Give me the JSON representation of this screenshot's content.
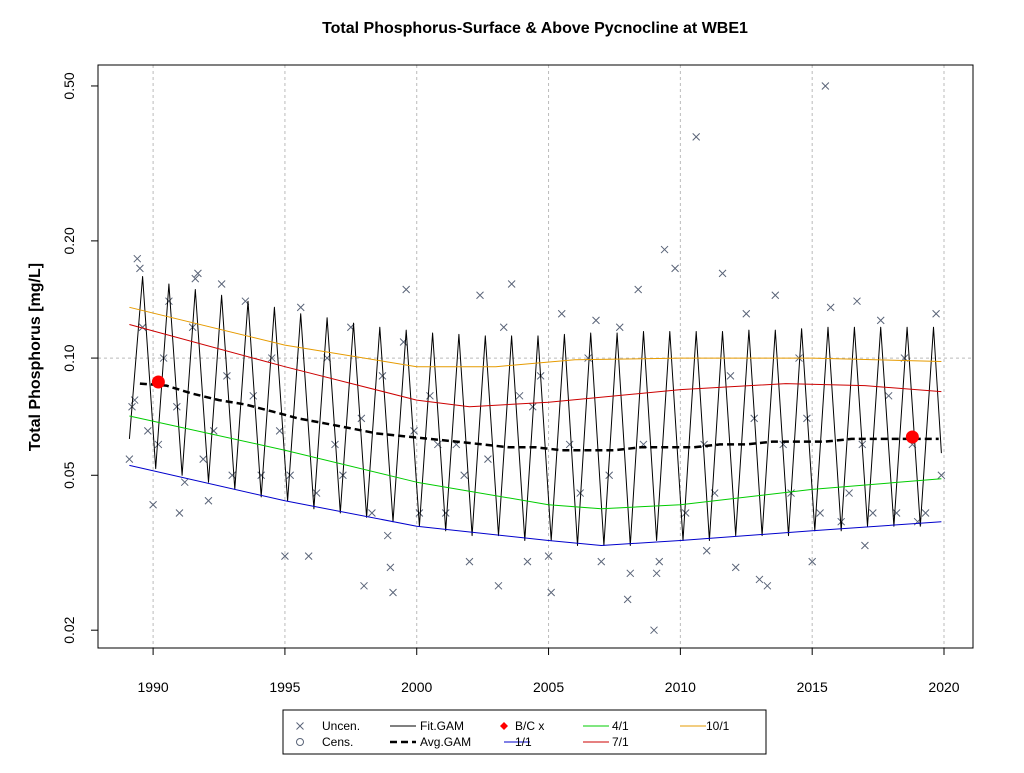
{
  "chart_data": {
    "type": "line",
    "title": "Total Phosphorus-Surface & Above Pycnocline at WBE1",
    "y_label": "Total Phosphorus [mg/L]",
    "log_y": true,
    "xlim": [
      1987.91,
      2021.1
    ],
    "ylim": [
      0.018,
      0.566
    ],
    "xticks": [
      1990,
      1995,
      2000,
      2005,
      2010,
      2015,
      2020
    ],
    "yticks": [
      {
        "value": 0.5,
        "label": "0.50"
      },
      {
        "value": 0.2,
        "label": "0.20"
      },
      {
        "value": 0.1,
        "label": "0.10"
      },
      0.05,
      0.02
    ],
    "xgrid": true,
    "ygrid_at": 0.1,
    "legend_position": "bottom",
    "series": [
      {
        "name": "Uncen.",
        "type": "scatter",
        "marker": "x",
        "color": "#5a6478",
        "x": [
          1989.1,
          1989.2,
          1989.3,
          1989.4,
          1989.5,
          1989.6,
          1989.8,
          1990.0,
          1990.2,
          1990.4,
          1990.6,
          1990.9,
          1991.0,
          1991.2,
          1991.5,
          1991.6,
          1991.7,
          1991.9,
          1992.1,
          1992.3,
          1992.6,
          1992.8,
          1993.0,
          1993.5,
          1993.8,
          1994.1,
          1994.5,
          1994.8,
          1995.0,
          1995.2,
          1995.6,
          1995.9,
          1996.2,
          1996.6,
          1996.9,
          1997.2,
          1997.5,
          1997.9,
          1998.0,
          1998.3,
          1998.7,
          1998.9,
          1999.0,
          1999.1,
          1999.5,
          1999.6,
          1999.9,
          2000.1,
          2000.5,
          2000.8,
          2001.1,
          2001.5,
          2001.8,
          2002.0,
          2002.4,
          2002.7,
          2003.1,
          2003.3,
          2003.6,
          2003.9,
          2004.2,
          2004.4,
          2004.7,
          2005.0,
          2005.1,
          2005.5,
          2005.8,
          2006.2,
          2006.5,
          2006.8,
          2007.0,
          2007.3,
          2007.7,
          2008.0,
          2008.1,
          2008.4,
          2008.6,
          2009.0,
          2009.1,
          2009.2,
          2009.4,
          2009.8,
          2010.2,
          2010.6,
          2010.9,
          2011.0,
          2011.3,
          2011.6,
          2011.9,
          2012.1,
          2012.5,
          2012.8,
          2013.0,
          2013.3,
          2013.6,
          2013.9,
          2014.2,
          2014.5,
          2014.8,
          2015.0,
          2015.3,
          2015.5,
          2015.7,
          2016.1,
          2016.4,
          2016.7,
          2016.9,
          2017.0,
          2017.3,
          2017.6,
          2017.9,
          2018.2,
          2018.5,
          2018.8,
          2019.0,
          2019.3,
          2019.7,
          2019.9
        ],
        "values": [
          0.055,
          0.075,
          0.078,
          0.18,
          0.17,
          0.12,
          0.065,
          0.042,
          0.06,
          0.1,
          0.14,
          0.075,
          0.04,
          0.048,
          0.12,
          0.16,
          0.165,
          0.055,
          0.043,
          0.065,
          0.155,
          0.09,
          0.05,
          0.14,
          0.08,
          0.05,
          0.1,
          0.065,
          0.031,
          0.05,
          0.135,
          0.031,
          0.045,
          0.1,
          0.06,
          0.05,
          0.12,
          0.07,
          0.026,
          0.04,
          0.09,
          0.035,
          0.029,
          0.025,
          0.11,
          0.15,
          0.065,
          0.04,
          0.08,
          0.06,
          0.04,
          0.06,
          0.05,
          0.03,
          0.145,
          0.055,
          0.026,
          0.12,
          0.155,
          0.08,
          0.03,
          0.075,
          0.09,
          0.031,
          0.025,
          0.13,
          0.06,
          0.045,
          0.1,
          0.125,
          0.03,
          0.05,
          0.12,
          0.024,
          0.028,
          0.15,
          0.06,
          0.02,
          0.028,
          0.03,
          0.19,
          0.17,
          0.04,
          0.37,
          0.06,
          0.032,
          0.045,
          0.165,
          0.09,
          0.029,
          0.13,
          0.07,
          0.027,
          0.026,
          0.145,
          0.06,
          0.045,
          0.1,
          0.07,
          0.03,
          0.04,
          0.5,
          0.135,
          0.038,
          0.045,
          0.14,
          0.06,
          0.033,
          0.04,
          0.125,
          0.08,
          0.04,
          0.1,
          0.06,
          0.038,
          0.04,
          0.13,
          0.05
        ]
      },
      {
        "name": "Cens.",
        "type": "scatter",
        "marker": "circle",
        "color": "#5a6478",
        "x": [],
        "values": []
      },
      {
        "name": "Fit.GAM",
        "type": "line",
        "color": "#000000",
        "width": 1,
        "x": [
          1989.1,
          1989.6,
          1990.1,
          1990.6,
          1991.1,
          1991.6,
          1992.1,
          1992.6,
          1993.1,
          1993.6,
          1994.1,
          1994.6,
          1995.1,
          1995.6,
          1996.1,
          1996.6,
          1997.1,
          1997.6,
          1998.1,
          1998.6,
          1999.1,
          1999.6,
          2000.1,
          2000.6,
          2001.1,
          2001.6,
          2002.1,
          2002.6,
          2003.1,
          2003.6,
          2004.1,
          2004.6,
          2005.1,
          2005.6,
          2006.1,
          2006.6,
          2007.1,
          2007.6,
          2008.1,
          2008.6,
          2009.1,
          2009.6,
          2010.1,
          2010.6,
          2011.1,
          2011.6,
          2012.1,
          2012.6,
          2013.1,
          2013.6,
          2014.1,
          2014.6,
          2015.1,
          2015.6,
          2016.1,
          2016.6,
          2017.1,
          2017.6,
          2018.1,
          2018.6,
          2019.1,
          2019.6,
          2019.9
        ],
        "values": [
          0.062,
          0.162,
          0.052,
          0.155,
          0.05,
          0.15,
          0.048,
          0.145,
          0.046,
          0.14,
          0.044,
          0.135,
          0.043,
          0.13,
          0.041,
          0.127,
          0.04,
          0.123,
          0.039,
          0.12,
          0.038,
          0.118,
          0.037,
          0.116,
          0.036,
          0.115,
          0.035,
          0.114,
          0.035,
          0.114,
          0.034,
          0.114,
          0.034,
          0.115,
          0.033,
          0.116,
          0.033,
          0.116,
          0.033,
          0.117,
          0.034,
          0.117,
          0.034,
          0.117,
          0.034,
          0.117,
          0.035,
          0.118,
          0.035,
          0.118,
          0.035,
          0.119,
          0.036,
          0.12,
          0.036,
          0.12,
          0.037,
          0.12,
          0.037,
          0.12,
          0.037,
          0.12,
          0.057
        ]
      },
      {
        "name": "Avg.GAM",
        "type": "line",
        "color": "#000000",
        "width": 2.5,
        "dash": true,
        "x": [
          1989.5,
          1990.5,
          1991.5,
          1992.5,
          1993.5,
          1994.5,
          1995.5,
          1996.5,
          1997.5,
          1998.5,
          1999.5,
          2000.5,
          2001.5,
          2002.5,
          2003.5,
          2004.5,
          2005.5,
          2006.5,
          2007.5,
          2008.5,
          2009.5,
          2010.5,
          2011.5,
          2012.5,
          2013.5,
          2014.5,
          2015.5,
          2016.5,
          2017.5,
          2018.5,
          2019.5,
          2019.8
        ],
        "values": [
          0.086,
          0.085,
          0.081,
          0.078,
          0.076,
          0.073,
          0.07,
          0.068,
          0.066,
          0.064,
          0.063,
          0.062,
          0.061,
          0.06,
          0.059,
          0.059,
          0.058,
          0.058,
          0.058,
          0.059,
          0.059,
          0.059,
          0.06,
          0.06,
          0.061,
          0.061,
          0.061,
          0.062,
          0.062,
          0.062,
          0.062,
          0.062
        ]
      },
      {
        "name": "B/C x",
        "type": "scatter",
        "marker": "dot",
        "color": "#ff0000",
        "x": [
          1990.2,
          2018.8
        ],
        "values": [
          0.0868,
          0.0627
        ]
      },
      {
        "name": "1/1",
        "type": "line",
        "color": "#0000cc",
        "width": 1,
        "x": [
          1989.1,
          1995,
          2000,
          2005,
          2007,
          2010,
          2015,
          2019.9
        ],
        "values": [
          0.053,
          0.043,
          0.037,
          0.034,
          0.033,
          0.034,
          0.036,
          0.038
        ]
      },
      {
        "name": "4/1",
        "type": "line",
        "color": "#00cc00",
        "width": 1,
        "x": [
          1989.1,
          1995,
          2000,
          2005,
          2007,
          2010,
          2015,
          2019.9
        ],
        "values": [
          0.071,
          0.058,
          0.048,
          0.042,
          0.041,
          0.042,
          0.046,
          0.049
        ]
      },
      {
        "name": "7/1",
        "type": "line",
        "color": "#cc0000",
        "width": 1,
        "x": [
          1989.1,
          1995,
          2000,
          2002,
          2005,
          2010,
          2014,
          2017,
          2019.9
        ],
        "values": [
          0.122,
          0.095,
          0.078,
          0.075,
          0.077,
          0.083,
          0.086,
          0.085,
          0.082
        ]
      },
      {
        "name": "10/1",
        "type": "line",
        "color": "#e69b00",
        "width": 1,
        "x": [
          1989.1,
          1995,
          2000,
          2003,
          2006,
          2010,
          2015,
          2019.9
        ],
        "values": [
          0.135,
          0.108,
          0.095,
          0.095,
          0.099,
          0.1,
          0.1,
          0.098
        ]
      }
    ]
  }
}
